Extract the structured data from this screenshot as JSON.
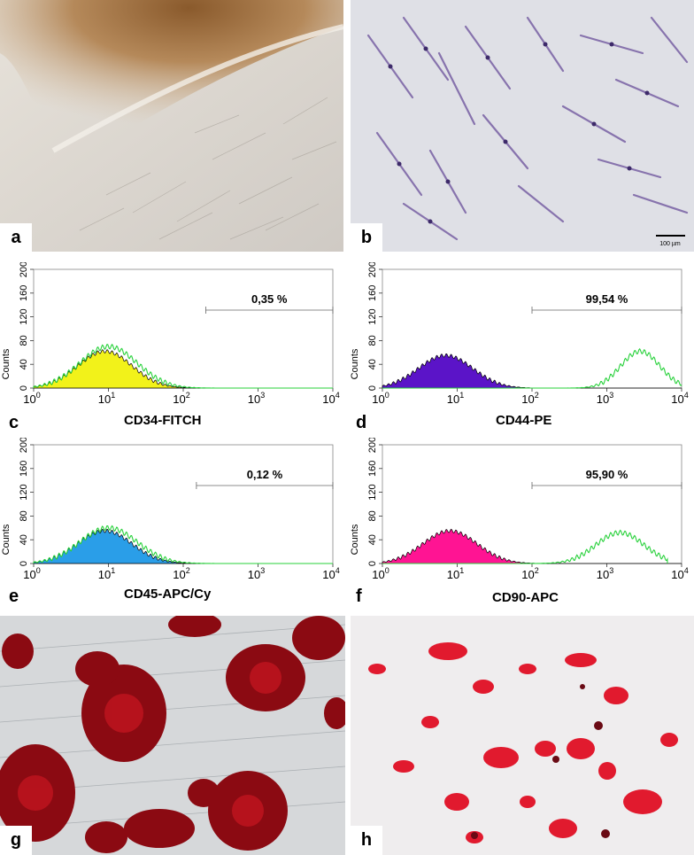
{
  "figure": {
    "panels": {
      "a": {
        "letter": "a",
        "description_icon": "explant-cell-outgrowth-photo"
      },
      "b": {
        "letter": "b",
        "scale_bar": "100 µm",
        "description_icon": "stained-fibroblast-photo"
      },
      "g": {
        "letter": "g",
        "description_icon": "alizarin-red-osteogenic-photo"
      },
      "h": {
        "letter": "h",
        "description_icon": "oil-red-adipogenic-photo"
      }
    },
    "colors": {
      "cd34_fill": "#f2f21a",
      "cd44_fill": "#5b14c8",
      "cd45_fill": "#2a9ee8",
      "cd90_fill": "#ff1493",
      "sample_line": "#27d13a",
      "control_line": "#000000"
    }
  },
  "chart_data": [
    {
      "type": "area",
      "panel": "c",
      "title": "CD34-FITCH",
      "ylabel": "Counts",
      "xscale": "log",
      "xlim": [
        1,
        10000
      ],
      "ylim": [
        0,
        200
      ],
      "x_ticks": [
        "10",
        "10",
        "10",
        "10",
        "10"
      ],
      "x_tick_exponents": [
        "0",
        "1",
        "2",
        "3",
        "4"
      ],
      "y_ticks": [
        "0",
        "40",
        "80",
        "120",
        "160",
        "200"
      ],
      "gate": {
        "label": "0,35 %",
        "x_range": [
          200,
          10000
        ]
      },
      "series": [
        {
          "role": "isotype",
          "peak_x": 9,
          "peak_y": 62,
          "width": 0.36,
          "fill": "#f2f21a",
          "x": [],
          "values": []
        },
        {
          "role": "sample",
          "peak_x": 10,
          "peak_y": 70,
          "width": 0.38,
          "x": [],
          "values": []
        }
      ]
    },
    {
      "type": "area",
      "panel": "d",
      "title": "CD44-PE",
      "ylabel": "Counts",
      "xscale": "log",
      "xlim": [
        1,
        10000
      ],
      "ylim": [
        0,
        200
      ],
      "x_ticks": [
        "10",
        "10",
        "10",
        "10",
        "10"
      ],
      "x_tick_exponents": [
        "0",
        "1",
        "2",
        "3",
        "4"
      ],
      "y_ticks": [
        "0",
        "40",
        "80",
        "120",
        "160",
        "200"
      ],
      "gate": {
        "label": "99,54 %",
        "x_range": [
          100,
          10000
        ]
      },
      "series": [
        {
          "role": "isotype",
          "peak_x": 7,
          "peak_y": 55,
          "width": 0.36,
          "fill": "#5b14c8"
        },
        {
          "role": "sample",
          "peak_x": 2800,
          "peak_y": 62,
          "width": 0.26
        }
      ]
    },
    {
      "type": "area",
      "panel": "e",
      "title": "CD45-APC/Cy",
      "ylabel": "Counts",
      "xscale": "log",
      "xlim": [
        1,
        10000
      ],
      "ylim": [
        0,
        200
      ],
      "x_ticks": [
        "10",
        "10",
        "10",
        "10",
        "10"
      ],
      "x_tick_exponents": [
        "0",
        "1",
        "2",
        "3",
        "4"
      ],
      "y_ticks": [
        "0",
        "40",
        "80",
        "120",
        "160",
        "200"
      ],
      "gate": {
        "label": "0,12 %",
        "x_range": [
          150,
          10000
        ]
      },
      "series": [
        {
          "role": "isotype",
          "peak_x": 9,
          "peak_y": 55,
          "width": 0.36,
          "fill": "#2a9ee8"
        },
        {
          "role": "sample",
          "peak_x": 10,
          "peak_y": 60,
          "width": 0.38
        }
      ]
    },
    {
      "type": "area",
      "panel": "f",
      "title": "CD90-APC",
      "ylabel": "Counts",
      "xscale": "log",
      "xlim": [
        1,
        10000
      ],
      "ylim": [
        0,
        200
      ],
      "x_ticks": [
        "10",
        "10",
        "10",
        "10",
        "10"
      ],
      "x_tick_exponents": [
        "0",
        "1",
        "2",
        "3",
        "4"
      ],
      "y_ticks": [
        "0",
        "40",
        "80",
        "120",
        "160",
        "200"
      ],
      "gate": {
        "label": "95,90 %",
        "x_range": [
          100,
          10000
        ]
      },
      "series": [
        {
          "role": "isotype",
          "peak_x": 8,
          "peak_y": 55,
          "width": 0.36,
          "fill": "#ff1493"
        },
        {
          "role": "sample",
          "peak_x": 1500,
          "peak_y": 52,
          "width": 0.32,
          "cutoff_x": 6500
        }
      ]
    }
  ]
}
